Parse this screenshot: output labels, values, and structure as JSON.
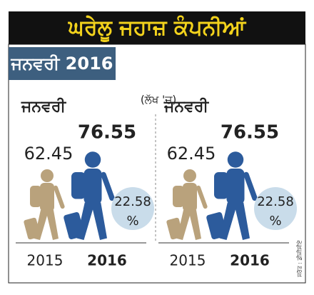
{
  "header": {
    "title": "ਘਰੇਲੂ ਜਹਾਜ਼ ਕੰਪਨੀਆਂ",
    "subtitle": "ਜਨਵਰੀ 2016",
    "unit": "(ਲੱਖ 'ਚ)"
  },
  "panels": [
    {
      "month": "ਜਨਵਰੀ",
      "value_2015": 62.45,
      "value_2016": 76.55,
      "growth": 22.58,
      "growth_unit": "%",
      "year_2015": 2015,
      "year_2016": 2016
    },
    {
      "month": "ਜਨਵਰੀ",
      "value_2015": 62.45,
      "value_2016": 76.55,
      "growth": 22.58,
      "growth_unit": "%",
      "year_2015": 2015,
      "year_2016": 2016
    }
  ],
  "source": "ਸਰੋਤ : ਡੀਜੀਸੀਏ"
}
